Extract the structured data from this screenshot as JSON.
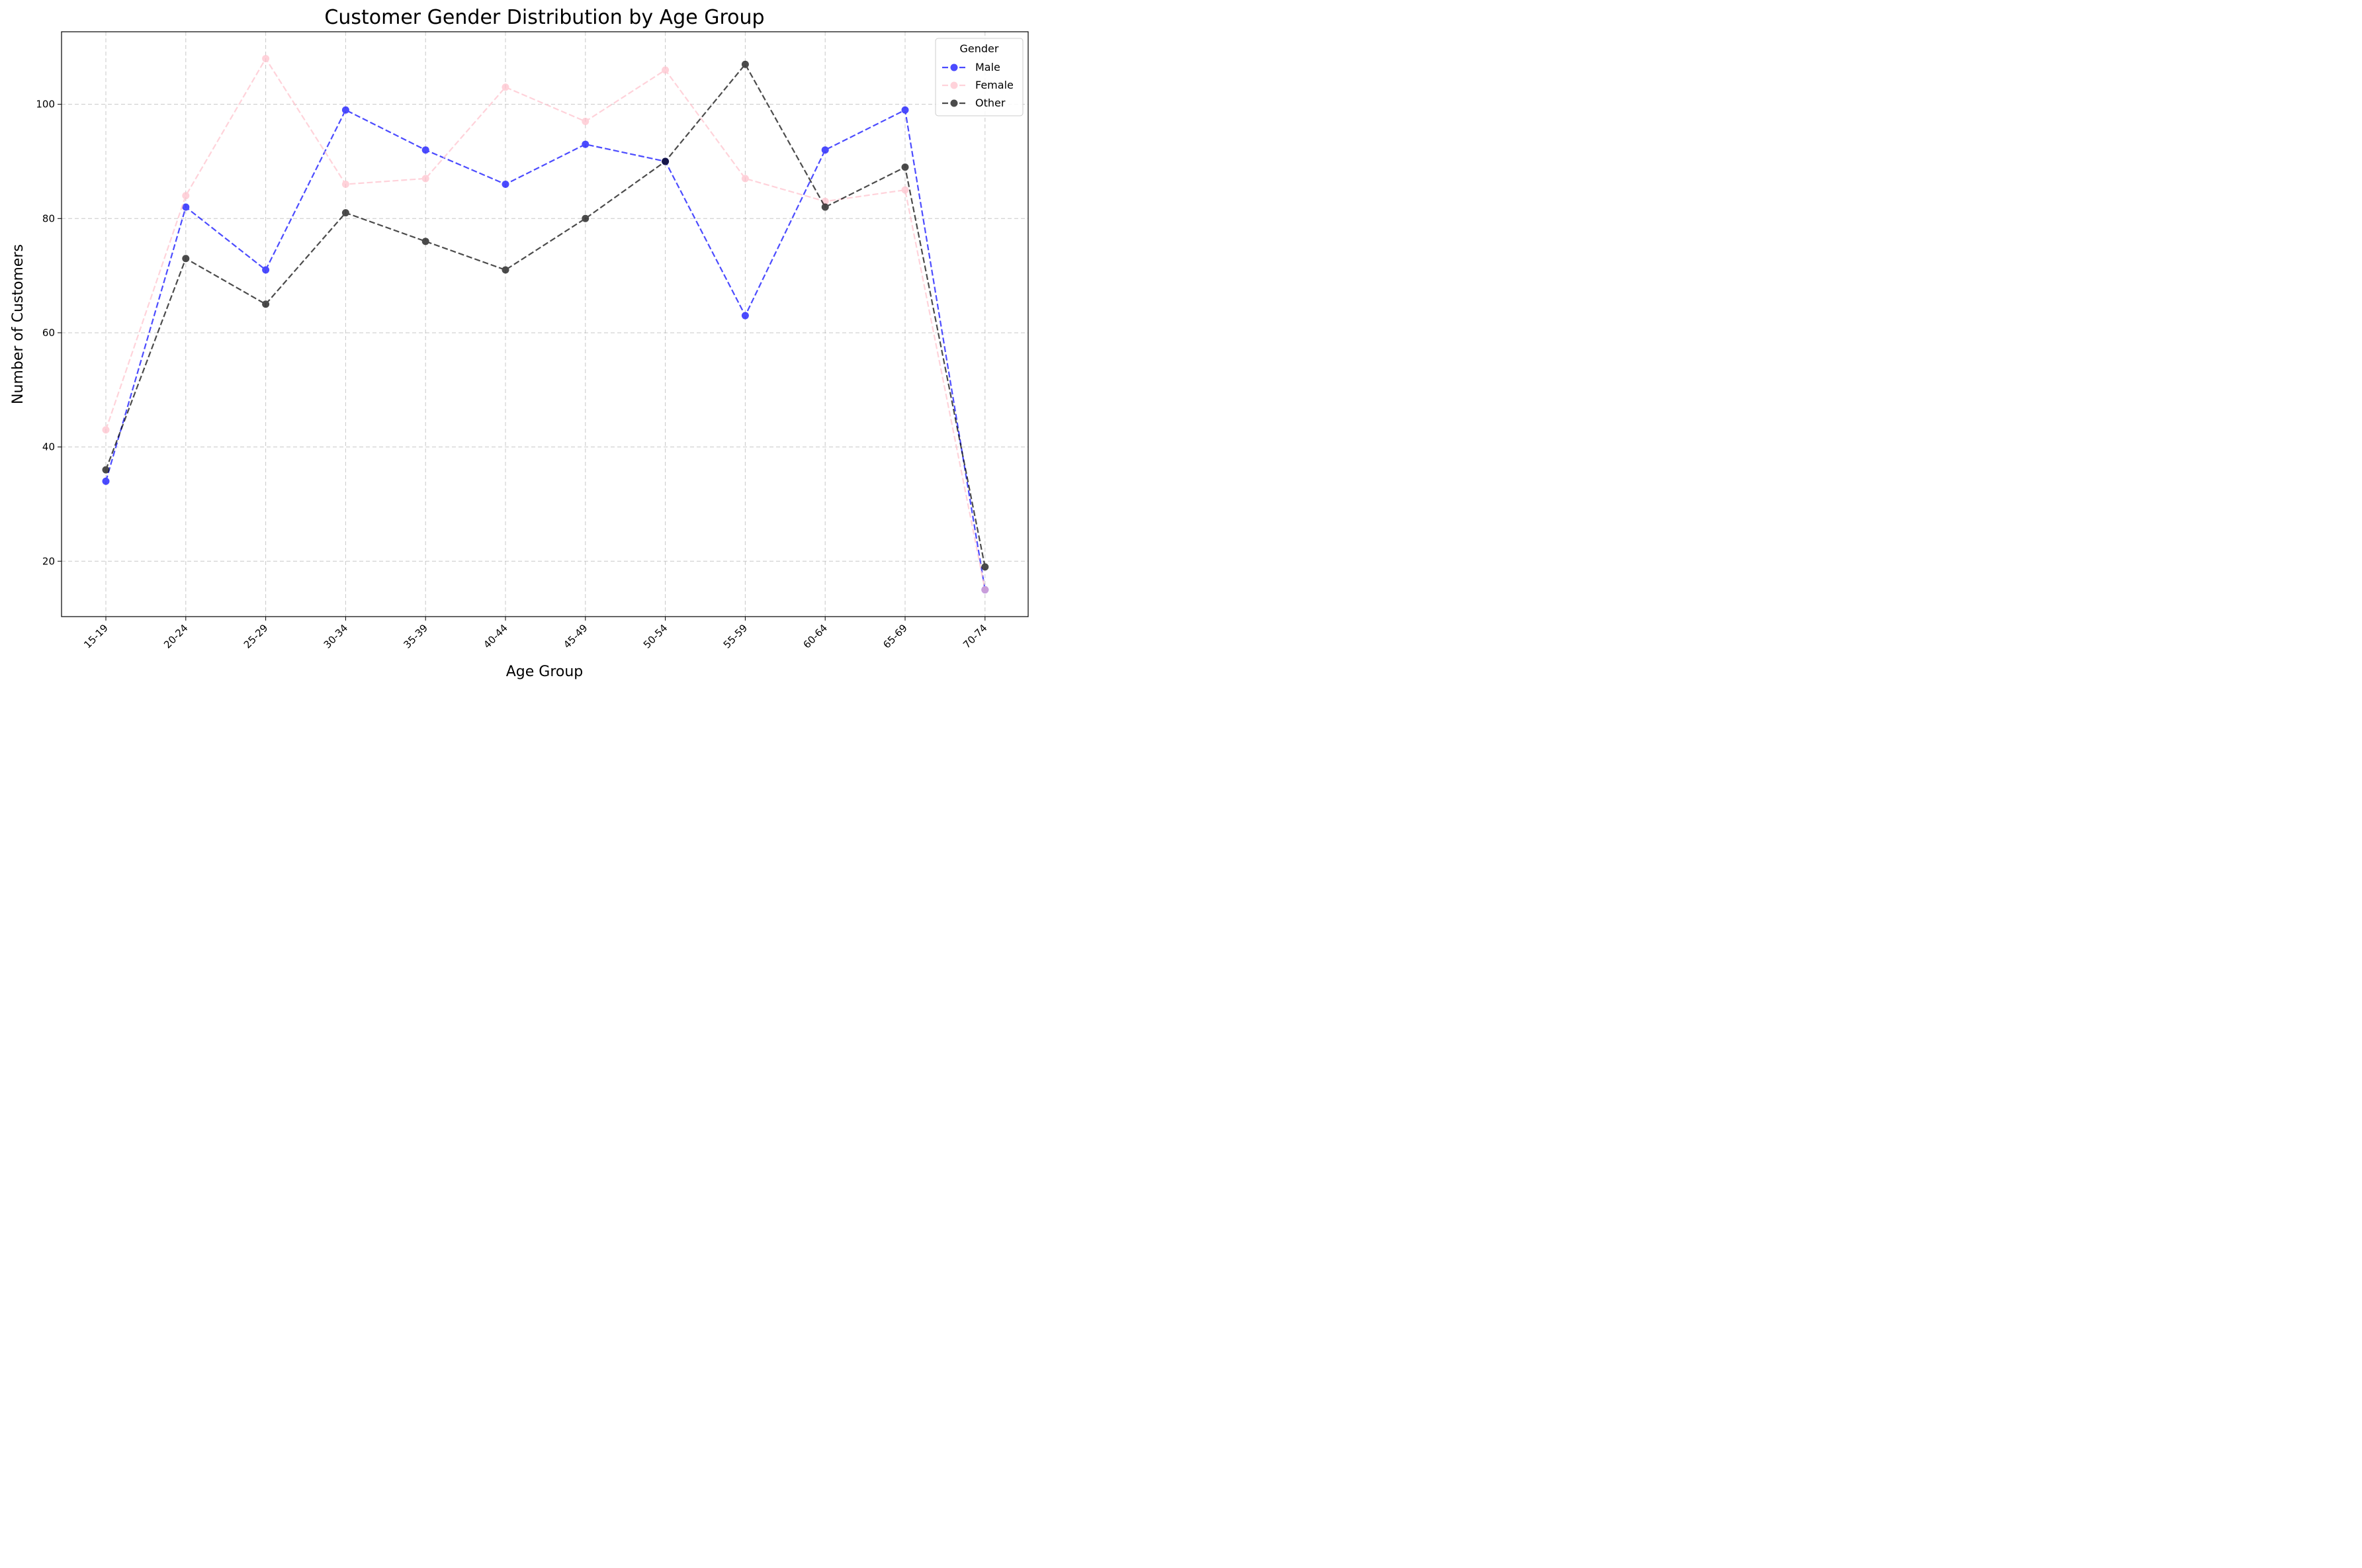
{
  "chart_data": {
    "type": "line",
    "title": "Customer Gender Distribution by Age Group",
    "xlabel": "Age Group",
    "ylabel": "Number of Customers",
    "categories": [
      "15-19",
      "20-24",
      "25-29",
      "30-34",
      "35-39",
      "40-44",
      "45-49",
      "50-54",
      "55-59",
      "60-64",
      "65-69",
      "70-74"
    ],
    "ylim": [
      10.3,
      112.7
    ],
    "yticks": [
      20,
      40,
      60,
      80,
      100
    ],
    "grid": true,
    "legend": {
      "title": "Gender",
      "placement": "top-right"
    },
    "series": [
      {
        "name": "Male",
        "color": "#0000ff",
        "values": [
          34,
          82,
          71,
          99,
          92,
          86,
          93,
          90,
          63,
          92,
          99,
          15
        ]
      },
      {
        "name": "Female",
        "color": "#ffc0cb",
        "values": [
          43,
          84,
          108,
          86,
          87,
          103,
          97,
          106,
          87,
          83,
          85,
          15
        ]
      },
      {
        "name": "Other",
        "color": "#000000",
        "values": [
          36,
          73,
          65,
          81,
          76,
          71,
          80,
          90,
          107,
          82,
          89,
          19
        ]
      }
    ]
  }
}
